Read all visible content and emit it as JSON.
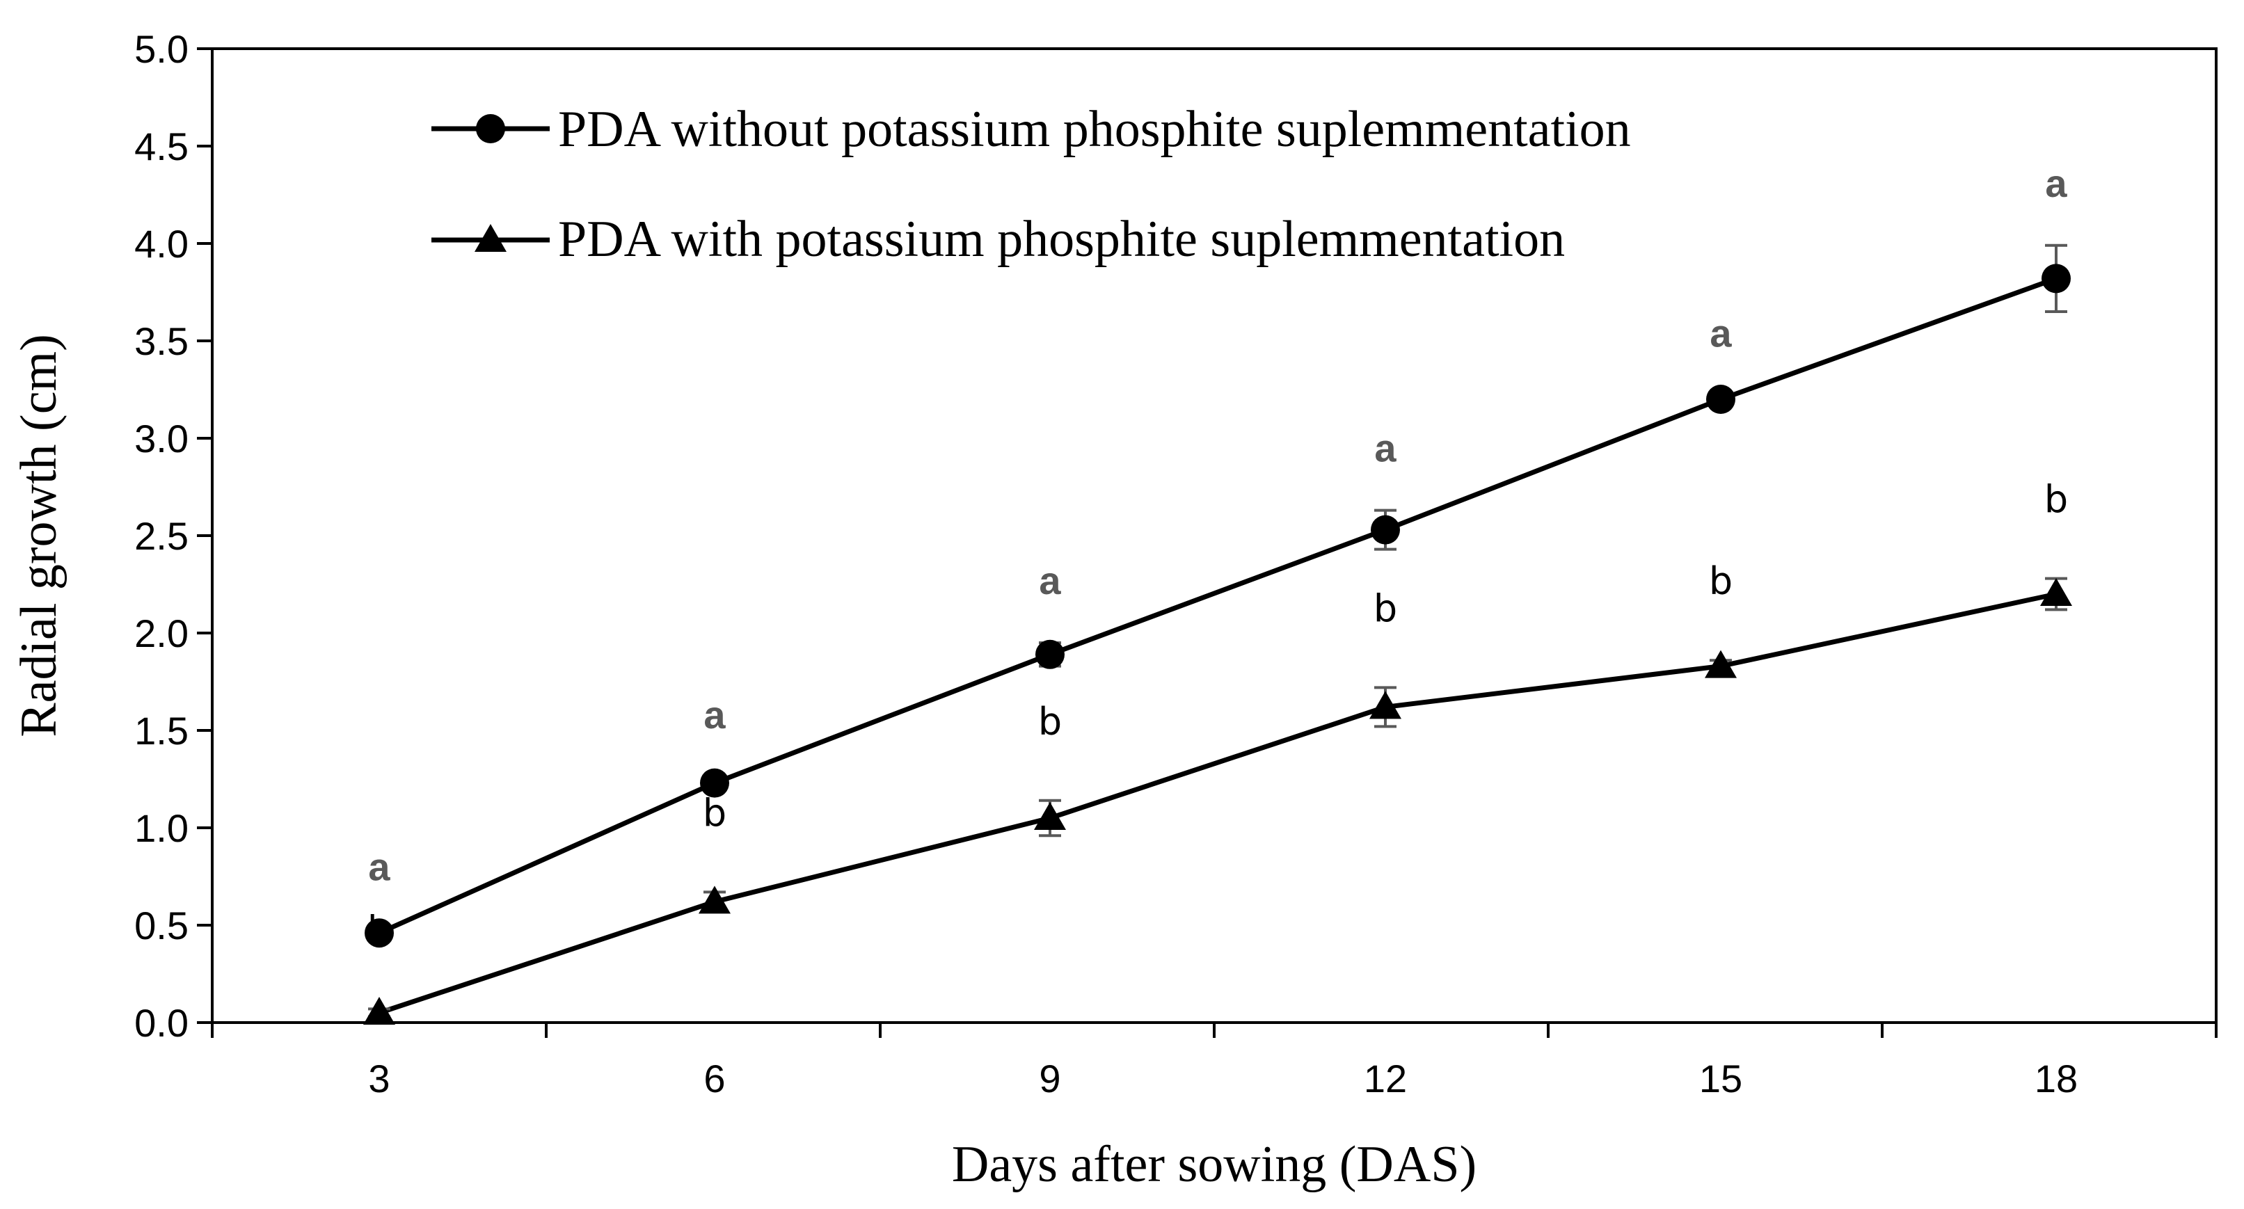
{
  "chart_data": {
    "type": "line",
    "title": "",
    "xlabel": "Days after sowing (DAS)",
    "ylabel": "Radial growth (cm)",
    "x": [
      3,
      6,
      9,
      12,
      15,
      18
    ],
    "x_tick_labels": [
      "3",
      "6",
      "9",
      "12",
      "15",
      "18"
    ],
    "ylim": [
      0,
      5
    ],
    "y_ticks": [
      0.0,
      0.5,
      1.0,
      1.5,
      2.0,
      2.5,
      3.0,
      3.5,
      4.0,
      4.5,
      5.0
    ],
    "y_tick_labels": [
      "0.0",
      "0.5",
      "1.0",
      "1.5",
      "2.0",
      "2.5",
      "3.0",
      "3.5",
      "4.0",
      "4.5",
      "5.0"
    ],
    "grid": false,
    "legend_position": "top-left",
    "series": [
      {
        "name": "PDA without potassium phosphite suplemmentation",
        "marker": "circle",
        "values": [
          0.46,
          1.23,
          1.89,
          2.53,
          3.2,
          3.82
        ],
        "errors": [
          0.02,
          0.03,
          0.06,
          0.1,
          0.02,
          0.17
        ],
        "significance": [
          "a",
          "a",
          "a",
          "a",
          "a",
          "a"
        ],
        "significance_color": "#595959"
      },
      {
        "name": "PDA with potassium phosphite suplemmentation",
        "marker": "triangle",
        "values": [
          0.05,
          0.62,
          1.05,
          1.62,
          1.83,
          2.2
        ],
        "errors": [
          0.02,
          0.05,
          0.09,
          0.1,
          0.03,
          0.08
        ],
        "significance": [
          "b",
          "b",
          "b",
          "b",
          "b",
          "b"
        ],
        "significance_color": "#000000"
      }
    ]
  }
}
